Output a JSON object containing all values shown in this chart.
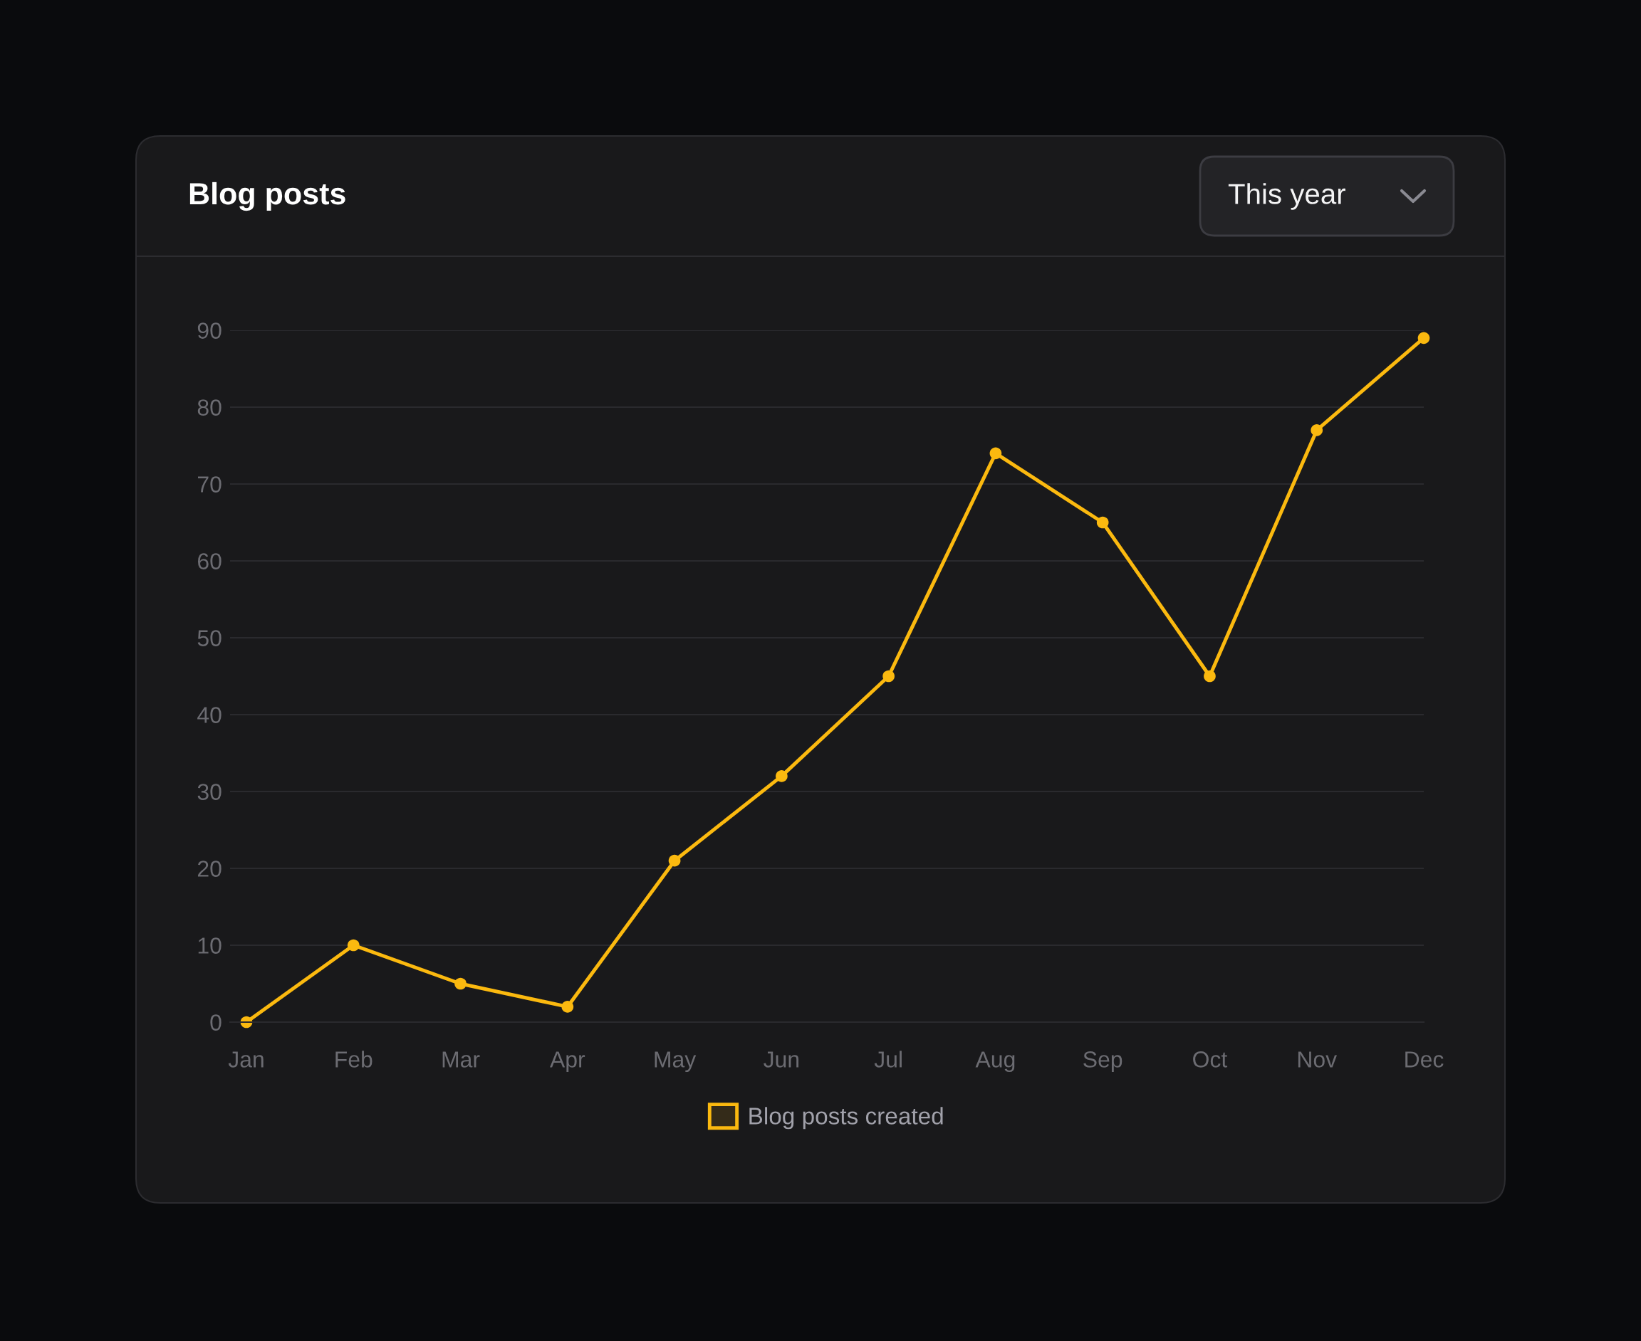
{
  "chart_data": {
    "type": "line",
    "title": "Blog posts",
    "annotations": [
      "This year"
    ],
    "categories": [
      "Jan",
      "Feb",
      "Mar",
      "Apr",
      "May",
      "Jun",
      "Jul",
      "Aug",
      "Sep",
      "Oct",
      "Nov",
      "Dec"
    ],
    "series": [
      {
        "name": "Blog posts created",
        "color": "#fbb90f",
        "values": [
          0,
          10,
          5,
          2,
          21,
          32,
          45,
          74,
          65,
          45,
          77,
          89
        ]
      }
    ],
    "ylim": [
      0,
      90
    ],
    "yticks": [
      0,
      10,
      20,
      30,
      40,
      50,
      60,
      70,
      80,
      90
    ],
    "grid": "y",
    "legend": "bottom",
    "marker": "circle",
    "line_style": "solid"
  }
}
